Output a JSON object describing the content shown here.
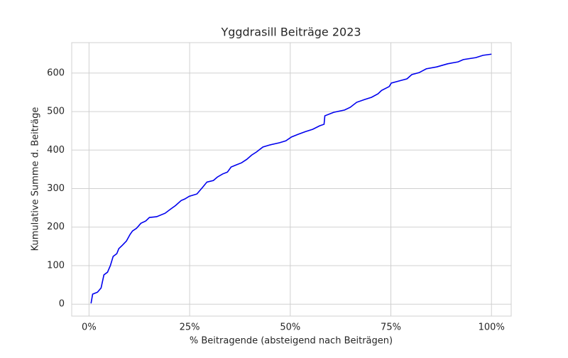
{
  "chart_data": {
    "type": "line",
    "title": "Yggdrasill Beiträge 2023",
    "x_label": "% Beitragende (absteigend nach Beiträgen)",
    "y_label": "Kumulative Summe d. Beiträge",
    "x": [
      0.5,
      0.9,
      2.1,
      3.0,
      3.7,
      4.6,
      5.3,
      6.0,
      6.9,
      7.4,
      8.3,
      9.3,
      10.2,
      10.8,
      11.8,
      12.9,
      14.1,
      15.0,
      16.8,
      18.9,
      20.3,
      21.5,
      22.9,
      23.8,
      24.9,
      26.8,
      28.2,
      29.3,
      30.9,
      31.9,
      33.2,
      34.4,
      35.3,
      36.7,
      37.9,
      39.2,
      40.4,
      41.6,
      43.2,
      44.8,
      47.3,
      48.9,
      50.3,
      52.0,
      53.8,
      55.6,
      57.3,
      58.4,
      58.6,
      60.8,
      63.5,
      64.9,
      66.5,
      68.4,
      70.2,
      71.8,
      72.7,
      74.6,
      75.1,
      77.6,
      79.0,
      80.2,
      82.0,
      83.8,
      86.4,
      89.1,
      91.7,
      93.0,
      96.1,
      97.9,
      100
    ],
    "series": [
      {
        "name": "Kumulative Summe",
        "color": "#0000ee",
        "values": [
          2,
          26,
          31,
          42,
          76,
          83,
          100,
          124,
          131,
          144,
          153,
          164,
          181,
          190,
          197,
          210,
          216,
          225,
          227,
          236,
          247,
          256,
          269,
          273,
          280,
          286,
          303,
          317,
          321,
          330,
          338,
          343,
          356,
          362,
          367,
          376,
          387,
          395,
          408,
          413,
          419,
          424,
          434,
          441,
          448,
          454,
          463,
          467,
          489,
          498,
          504,
          511,
          524,
          531,
          537,
          546,
          555,
          565,
          574,
          581,
          585,
          596,
          601,
          611,
          616,
          624,
          629,
          635,
          640,
          646,
          649
        ]
      }
    ],
    "xlim": [
      -4.3,
      104.9
    ],
    "ylim": [
      -31,
      679
    ],
    "xticks": [
      {
        "value": 0,
        "label": "0%"
      },
      {
        "value": 25,
        "label": "25%"
      },
      {
        "value": 50,
        "label": "50%"
      },
      {
        "value": 75,
        "label": "75%"
      },
      {
        "value": 100,
        "label": "100%"
      }
    ],
    "yticks": [
      0,
      100,
      200,
      300,
      400,
      500,
      600
    ],
    "grid": true
  }
}
